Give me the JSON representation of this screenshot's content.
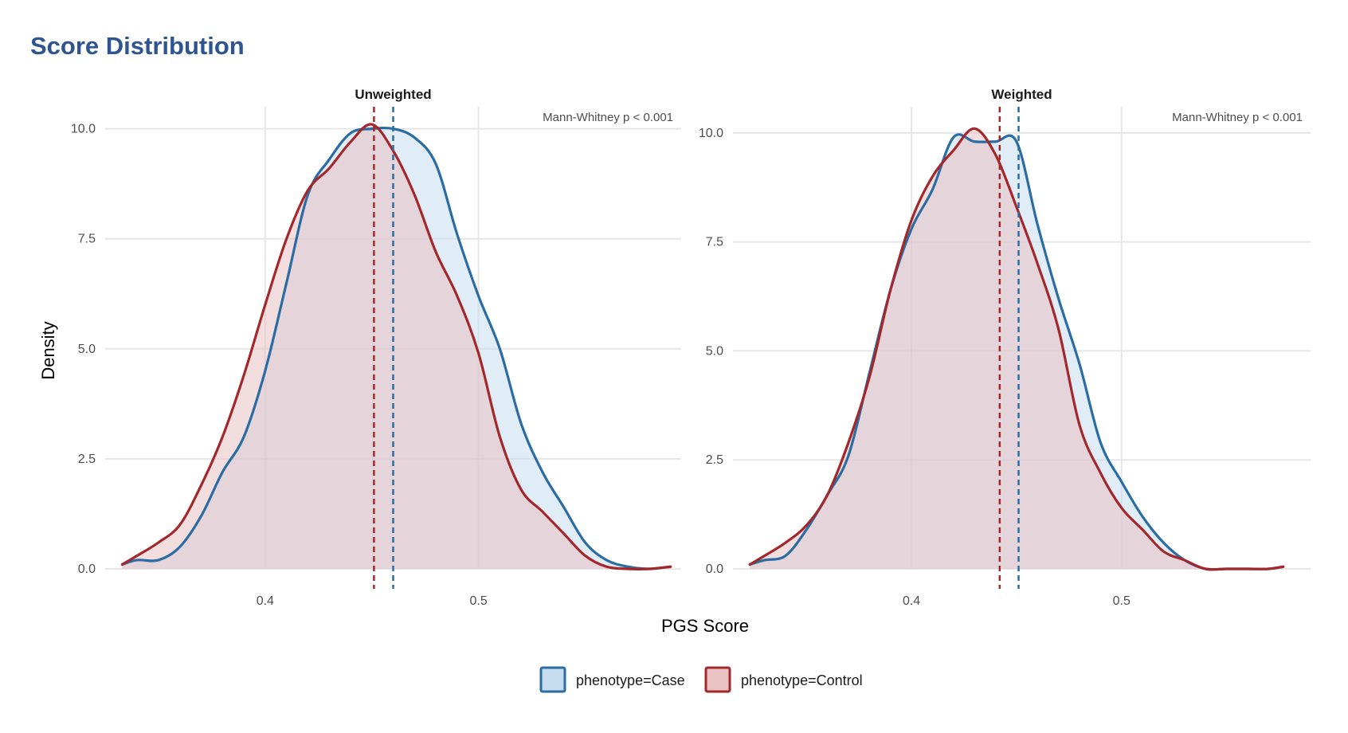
{
  "title": "Score Distribution",
  "colors": {
    "case": "#2b6ca3",
    "control": "#a3282c",
    "case_fill": "#c6dcef",
    "control_fill": "#e9c3c4"
  },
  "chart_data": [
    {
      "type": "area",
      "title": "Unweighted",
      "xlabel": "PGS Score",
      "ylabel": "Density",
      "annotation": "Mann-Whitney  p < 0.001",
      "xlim": [
        0.325,
        0.595
      ],
      "ylim": [
        0,
        10.5
      ],
      "xticks": [
        0.4,
        0.5
      ],
      "xtick_labels": [
        "0.4",
        "0.5"
      ],
      "yticks": [
        0,
        2.5,
        5,
        7.5,
        10
      ],
      "ytick_labels": [
        "0.0",
        "2.5",
        "5.0",
        "7.5",
        "10.0"
      ],
      "grid": true,
      "series": [
        {
          "name": "phenotype=Case",
          "mean": 0.46,
          "x": [
            0.333,
            0.34,
            0.35,
            0.36,
            0.37,
            0.38,
            0.39,
            0.4,
            0.41,
            0.42,
            0.43,
            0.44,
            0.45,
            0.46,
            0.47,
            0.48,
            0.49,
            0.5,
            0.51,
            0.52,
            0.53,
            0.54,
            0.55,
            0.56,
            0.57,
            0.58,
            0.59
          ],
          "y": [
            0.1,
            0.2,
            0.2,
            0.5,
            1.2,
            2.2,
            3.0,
            4.5,
            6.5,
            8.5,
            9.3,
            9.9,
            10.0,
            10.0,
            9.8,
            9.2,
            7.6,
            6.2,
            5.0,
            3.3,
            2.2,
            1.4,
            0.6,
            0.2,
            0.05,
            0.0,
            0.05
          ]
        },
        {
          "name": "phenotype=Control",
          "mean": 0.451,
          "x": [
            0.333,
            0.34,
            0.35,
            0.36,
            0.37,
            0.38,
            0.39,
            0.4,
            0.41,
            0.42,
            0.43,
            0.44,
            0.45,
            0.46,
            0.47,
            0.48,
            0.49,
            0.5,
            0.51,
            0.52,
            0.53,
            0.54,
            0.55,
            0.56,
            0.57,
            0.58,
            0.59
          ],
          "y": [
            0.1,
            0.3,
            0.6,
            1.0,
            1.9,
            3.0,
            4.4,
            6.0,
            7.5,
            8.6,
            9.1,
            9.7,
            10.1,
            9.5,
            8.5,
            7.2,
            6.2,
            4.9,
            3.0,
            1.8,
            1.3,
            0.8,
            0.3,
            0.05,
            0.0,
            0.0,
            0.05
          ]
        }
      ]
    },
    {
      "type": "area",
      "title": "Weighted",
      "xlabel": "PGS Score",
      "ylabel": "Density",
      "annotation": "Mann-Whitney  p < 0.001",
      "xlim": [
        0.315,
        0.59
      ],
      "ylim": [
        0,
        10.6
      ],
      "xticks": [
        0.4,
        0.5
      ],
      "xtick_labels": [
        "0.4",
        "0.5"
      ],
      "yticks": [
        0,
        2.5,
        5,
        7.5,
        10
      ],
      "ytick_labels": [
        "0.0",
        "2.5",
        "5.0",
        "7.5",
        "10.0"
      ],
      "grid": true,
      "series": [
        {
          "name": "phenotype=Case",
          "mean": 0.451,
          "x": [
            0.323,
            0.33,
            0.34,
            0.35,
            0.36,
            0.37,
            0.38,
            0.39,
            0.4,
            0.41,
            0.42,
            0.43,
            0.44,
            0.45,
            0.46,
            0.47,
            0.48,
            0.49,
            0.5,
            0.51,
            0.52,
            0.53,
            0.54,
            0.55,
            0.56,
            0.57,
            0.577
          ],
          "y": [
            0.1,
            0.2,
            0.3,
            0.9,
            1.7,
            2.6,
            4.5,
            6.4,
            7.8,
            8.7,
            9.9,
            9.8,
            9.8,
            9.8,
            7.9,
            6.2,
            4.7,
            2.9,
            2.0,
            1.2,
            0.6,
            0.2,
            0.0,
            0.0,
            0.0,
            0.0,
            0.05
          ]
        },
        {
          "name": "phenotype=Control",
          "mean": 0.442,
          "x": [
            0.323,
            0.33,
            0.34,
            0.35,
            0.36,
            0.37,
            0.38,
            0.39,
            0.4,
            0.41,
            0.42,
            0.43,
            0.44,
            0.45,
            0.46,
            0.47,
            0.48,
            0.49,
            0.5,
            0.51,
            0.52,
            0.53,
            0.54,
            0.55,
            0.56,
            0.57,
            0.577
          ],
          "y": [
            0.1,
            0.3,
            0.6,
            1.0,
            1.7,
            2.9,
            4.4,
            6.4,
            8.0,
            9.0,
            9.6,
            10.1,
            9.5,
            8.3,
            7.0,
            5.5,
            3.3,
            2.2,
            1.4,
            0.9,
            0.4,
            0.2,
            0.0,
            0.0,
            0.0,
            0.0,
            0.05
          ]
        }
      ]
    }
  ],
  "legend": {
    "position": "bottom",
    "items": [
      {
        "label": "phenotype=Case"
      },
      {
        "label": "phenotype=Control"
      }
    ]
  }
}
